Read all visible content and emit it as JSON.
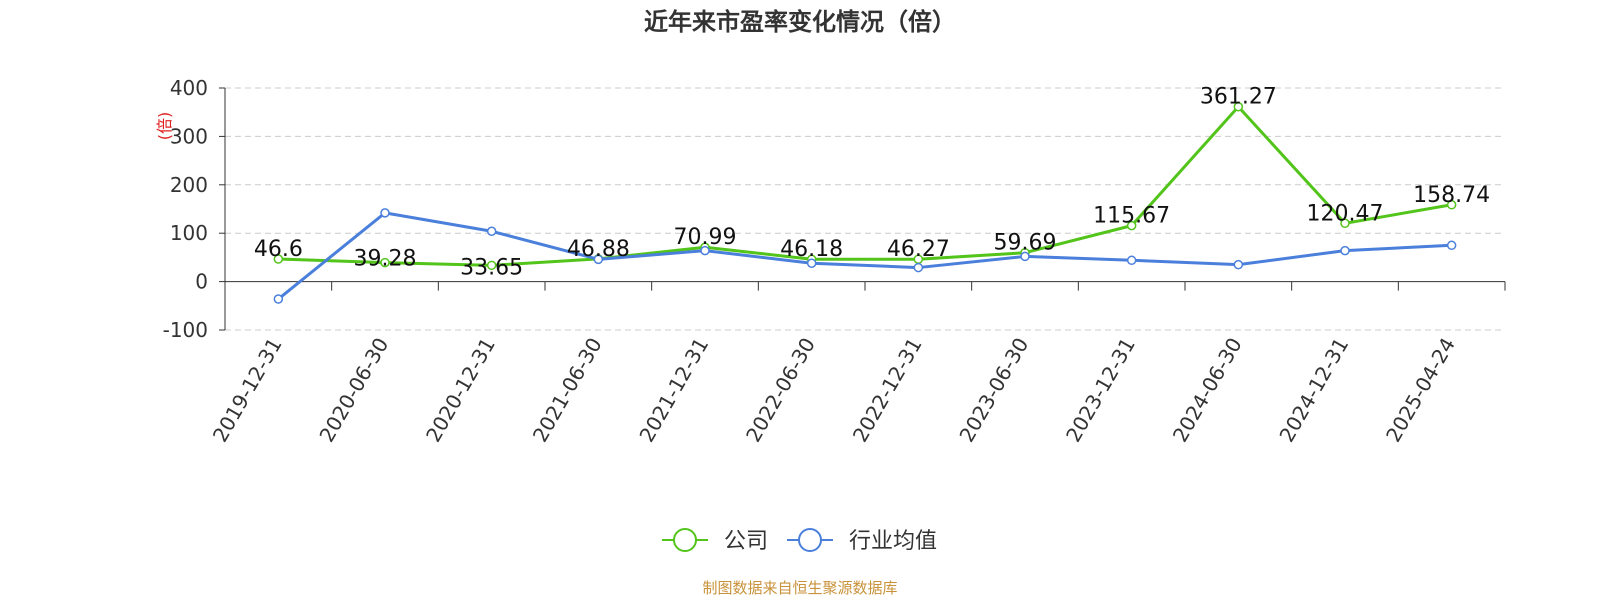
{
  "chart_data": {
    "type": "line",
    "title": "近年来市盈率变化情况（倍）",
    "ylabel": "(倍)",
    "xlabel": "",
    "ylim": [
      -100,
      400
    ],
    "yticks": [
      "400",
      "300",
      "200",
      "100",
      "0",
      "-100"
    ],
    "grid": true,
    "legend_position": "bottom-center",
    "categories": [
      "2019-12-31",
      "2020-06-30",
      "2020-12-31",
      "2021-06-30",
      "2021-12-31",
      "2022-06-30",
      "2022-12-31",
      "2023-06-30",
      "2023-12-31",
      "2024-06-30",
      "2024-12-31",
      "2025-04-24"
    ],
    "series": [
      {
        "name": "公司",
        "color": "#52c41a",
        "values": [
          46.6,
          39.28,
          33.65,
          46.88,
          70.99,
          46.18,
          46.27,
          59.69,
          115.67,
          361.27,
          120.47,
          158.74
        ],
        "labels": [
          "46.6",
          "39.28",
          "33.65",
          "46.88",
          "70.99",
          "46.18",
          "46.27",
          "59.69",
          "115.67",
          "361.27",
          "120.47",
          "158.74"
        ]
      },
      {
        "name": "行业均值",
        "color": "#4a7fdb",
        "values": [
          -36,
          142,
          104,
          46,
          64,
          38,
          29,
          52,
          44,
          35,
          64,
          75
        ]
      }
    ]
  },
  "footer": {
    "source": "制图数据来自恒生聚源数据库"
  }
}
